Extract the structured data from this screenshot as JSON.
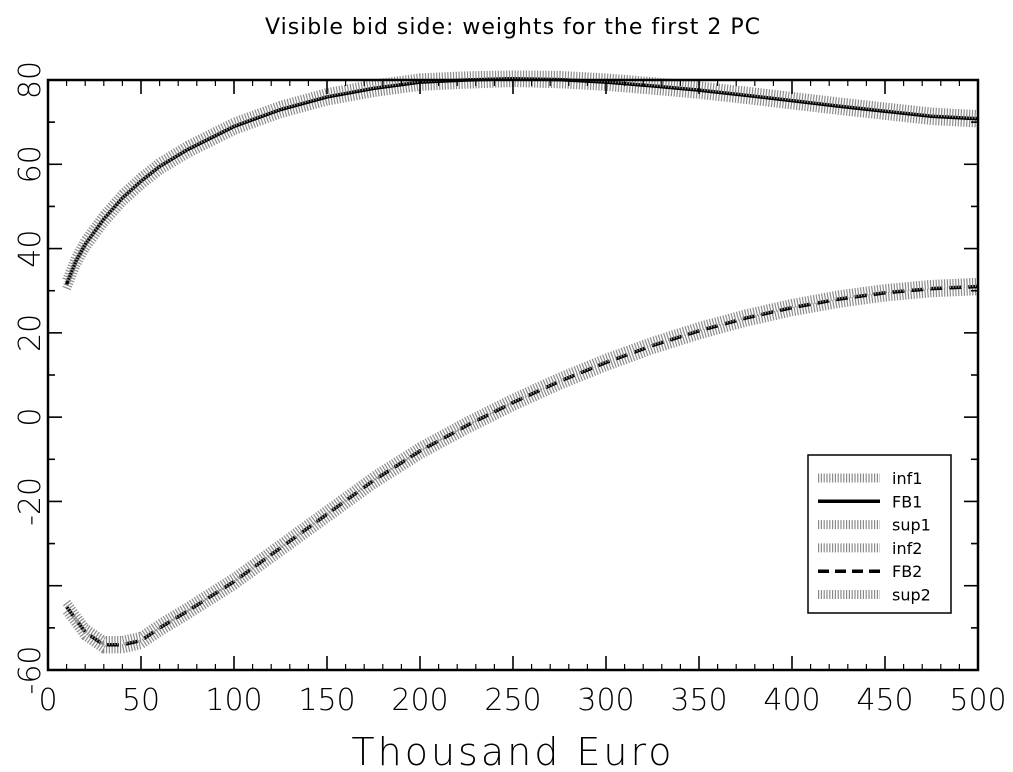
{
  "chart_data": {
    "type": "line",
    "title": "Visible bid side: weights for the first 2 PC",
    "xlabel": "Thousand Euro",
    "ylabel": "",
    "xlim": [
      0,
      500
    ],
    "ylim": [
      -60,
      80
    ],
    "xticks": [
      0,
      50,
      100,
      150,
      200,
      250,
      300,
      350,
      400,
      450,
      500
    ],
    "yticks": [
      -60,
      -20,
      0,
      20,
      40,
      60,
      80
    ],
    "ytick_labels": [
      "-60",
      "-20",
      "0",
      "20",
      "40",
      "60",
      "80"
    ],
    "grid": false,
    "legend_position": "lower-right",
    "x": [
      10,
      15,
      20,
      30,
      40,
      50,
      60,
      75,
      100,
      125,
      150,
      175,
      200,
      225,
      250,
      275,
      300,
      325,
      350,
      375,
      400,
      425,
      450,
      475,
      500
    ],
    "series": [
      {
        "name": "inf1",
        "style": "band",
        "color": "#8a8a8a",
        "values": [
          30.5,
          36,
          40,
          46,
          51,
          55,
          58.5,
          62.5,
          68,
          72,
          75,
          77,
          78.5,
          79,
          79.4,
          79.1,
          78.5,
          77.6,
          76.6,
          75.4,
          74.1,
          72.8,
          71.6,
          70.4,
          69.8
        ]
      },
      {
        "name": "FB1",
        "style": "solid",
        "color": "#000000",
        "values": [
          31.5,
          37,
          41,
          47,
          52,
          56,
          59.5,
          63.5,
          69,
          73,
          76,
          78,
          79.5,
          80,
          80.3,
          80.1,
          79.5,
          78.6,
          77.6,
          76.4,
          75.1,
          73.8,
          72.6,
          71.4,
          70.8
        ]
      },
      {
        "name": "sup1",
        "style": "band",
        "color": "#8a8a8a",
        "values": [
          32.5,
          38,
          42,
          48,
          53,
          57,
          60.5,
          64.5,
          70,
          74,
          77,
          79,
          80.5,
          81,
          81.2,
          81.1,
          80.5,
          79.6,
          78.6,
          77.4,
          76.1,
          74.8,
          73.6,
          72.4,
          71.8
        ]
      },
      {
        "name": "inf2",
        "style": "band",
        "color": "#8a8a8a",
        "values": [
          -46,
          -49,
          -52,
          -55,
          -55,
          -54,
          -51,
          -47,
          -40,
          -32,
          -24,
          -16,
          -9,
          -3,
          2.5,
          7.5,
          12,
          16,
          19.5,
          22.5,
          25,
          27,
          28.5,
          29.5,
          30
        ]
      },
      {
        "name": "FB2",
        "style": "dashed",
        "color": "#000000",
        "values": [
          -45,
          -48,
          -51,
          -54,
          -54,
          -53,
          -50,
          -46,
          -39,
          -31,
          -23,
          -15,
          -8,
          -2,
          3.5,
          8.5,
          13,
          17,
          20.5,
          23.5,
          26,
          28,
          29.5,
          30.5,
          31
        ]
      },
      {
        "name": "sup2",
        "style": "band",
        "color": "#8a8a8a",
        "values": [
          -44,
          -47,
          -50,
          -53,
          -53,
          -52,
          -49,
          -45,
          -38,
          -30,
          -22,
          -14,
          -7,
          -1,
          4.5,
          9.5,
          14,
          18,
          21.5,
          24.5,
          27,
          29,
          30.5,
          31.5,
          32
        ]
      }
    ]
  }
}
